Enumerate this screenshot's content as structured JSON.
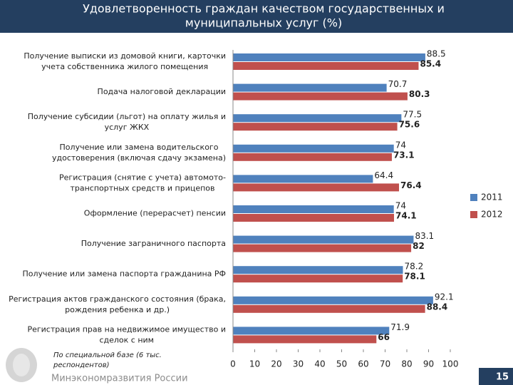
{
  "chart_data": {
    "type": "bar",
    "orientation": "horizontal",
    "title": [
      "Удовлетворенность граждан качеством государственных и",
      "муниципальных услуг (%)"
    ],
    "categories": [
      [
        "Получение выписки из домовой книги, карточки",
        "учета собственника жилого помещения"
      ],
      [
        "Подача налоговой декларации"
      ],
      [
        "Получение субсидии (льгот) на оплату жилья и",
        "услуг ЖКХ"
      ],
      [
        "Получение или замена водительского",
        "удостоверения (включая сдачу экзамена)"
      ],
      [
        "Регистрация (снятие с учета) автомото-",
        "транспортных средств и прицепов"
      ],
      [
        "Оформление (перерасчет) пенсии"
      ],
      [
        "Получение заграничного паспорта"
      ],
      [
        "Получение или замена паспорта гражданина РФ"
      ],
      [
        "Регистрация актов гражданского состояния (брака,",
        "рождения ребенка и др.)"
      ],
      [
        "Регистрация прав на недвижимое имущество и",
        "сделок с ним"
      ]
    ],
    "series": [
      {
        "name": "2011",
        "color": "#4f81bd",
        "values": [
          88.5,
          70.7,
          77.5,
          74,
          64.4,
          74,
          83.1,
          78.2,
          92.1,
          71.9
        ]
      },
      {
        "name": "2012",
        "color": "#c0504d",
        "values": [
          85.4,
          80.3,
          75.6,
          73.1,
          76.4,
          74.1,
          82,
          78.1,
          88.4,
          66
        ]
      }
    ],
    "xlim": [
      0,
      100
    ],
    "xticks": [
      0,
      10,
      20,
      30,
      40,
      50,
      60,
      70,
      80,
      90,
      100
    ],
    "legend": "right",
    "note": [
      "По специальной базе (6 тыс.",
      "респондентов)"
    ],
    "footer": "Минэкономразвития России",
    "page_number": "15"
  }
}
